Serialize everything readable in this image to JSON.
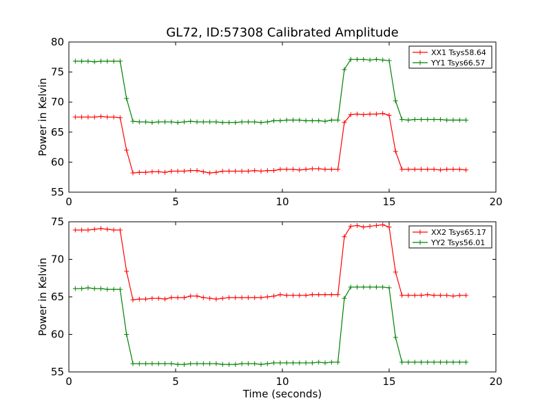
{
  "title": "GL72, ID:57308 Calibrated Amplitude",
  "colors": {
    "red": "#ff0000",
    "green": "#008000"
  },
  "chart_data": [
    {
      "type": "line",
      "title": "GL72, ID:57308 Calibrated Amplitude",
      "xlabel": "",
      "ylabel": "Power in Kelvin",
      "xlim": [
        0,
        20
      ],
      "ylim": [
        55,
        80
      ],
      "xticks": [
        0,
        5,
        10,
        15,
        20
      ],
      "yticks": [
        55,
        60,
        65,
        70,
        75,
        80
      ],
      "grid": false,
      "legend_position": "top-right",
      "x": [
        0.3,
        0.6,
        0.9,
        1.2,
        1.5,
        1.8,
        2.1,
        2.4,
        2.7,
        3.0,
        3.3,
        3.6,
        3.9,
        4.2,
        4.5,
        4.8,
        5.1,
        5.4,
        5.7,
        6.0,
        6.3,
        6.6,
        6.9,
        7.2,
        7.5,
        7.8,
        8.1,
        8.4,
        8.7,
        9.0,
        9.3,
        9.6,
        9.9,
        10.2,
        10.5,
        10.8,
        11.1,
        11.4,
        11.7,
        12.0,
        12.3,
        12.6,
        12.9,
        13.2,
        13.5,
        13.8,
        14.1,
        14.4,
        14.7,
        15.0,
        15.3,
        15.6,
        15.9,
        16.2,
        16.5,
        16.8,
        17.1,
        17.4,
        17.7,
        18.0,
        18.3,
        18.6
      ],
      "series": [
        {
          "name": "XX1 Tsys58.64",
          "color": "#ff0000",
          "values": [
            67.5,
            67.5,
            67.5,
            67.5,
            67.6,
            67.5,
            67.5,
            67.4,
            62.0,
            58.2,
            58.3,
            58.3,
            58.4,
            58.4,
            58.3,
            58.5,
            58.5,
            58.5,
            58.6,
            58.6,
            58.4,
            58.2,
            58.3,
            58.5,
            58.5,
            58.5,
            58.5,
            58.5,
            58.6,
            58.5,
            58.6,
            58.6,
            58.8,
            58.8,
            58.8,
            58.7,
            58.8,
            58.9,
            58.9,
            58.8,
            58.8,
            58.8,
            66.6,
            67.9,
            68.0,
            67.9,
            68.0,
            68.0,
            68.1,
            67.8,
            61.8,
            58.8,
            58.8,
            58.8,
            58.8,
            58.8,
            58.8,
            58.7,
            58.8,
            58.8,
            58.8,
            58.7
          ]
        },
        {
          "name": "YY1 Tsys66.57",
          "color": "#008000",
          "values": [
            76.8,
            76.8,
            76.8,
            76.7,
            76.8,
            76.8,
            76.8,
            76.8,
            70.6,
            66.8,
            66.7,
            66.7,
            66.6,
            66.7,
            66.7,
            66.7,
            66.6,
            66.7,
            66.8,
            66.7,
            66.7,
            66.7,
            66.7,
            66.6,
            66.6,
            66.6,
            66.7,
            66.7,
            66.7,
            66.6,
            66.7,
            66.9,
            66.9,
            67.0,
            67.0,
            67.0,
            66.9,
            66.9,
            66.9,
            66.8,
            67.0,
            67.0,
            75.4,
            77.1,
            77.1,
            77.1,
            77.0,
            77.1,
            77.0,
            76.9,
            70.2,
            67.1,
            67.0,
            67.1,
            67.1,
            67.1,
            67.1,
            67.1,
            67.0,
            67.0,
            67.0,
            67.0
          ]
        }
      ]
    },
    {
      "type": "line",
      "title": "",
      "xlabel": "Time (seconds)",
      "ylabel": "Power in Kelvin",
      "xlim": [
        0,
        20
      ],
      "ylim": [
        55,
        75
      ],
      "xticks": [
        0,
        5,
        10,
        15,
        20
      ],
      "yticks": [
        55,
        60,
        65,
        70,
        75
      ],
      "grid": false,
      "legend_position": "top-right",
      "x": [
        0.3,
        0.6,
        0.9,
        1.2,
        1.5,
        1.8,
        2.1,
        2.4,
        2.7,
        3.0,
        3.3,
        3.6,
        3.9,
        4.2,
        4.5,
        4.8,
        5.1,
        5.4,
        5.7,
        6.0,
        6.3,
        6.6,
        6.9,
        7.2,
        7.5,
        7.8,
        8.1,
        8.4,
        8.7,
        9.0,
        9.3,
        9.6,
        9.9,
        10.2,
        10.5,
        10.8,
        11.1,
        11.4,
        11.7,
        12.0,
        12.3,
        12.6,
        12.9,
        13.2,
        13.5,
        13.8,
        14.1,
        14.4,
        14.7,
        15.0,
        15.3,
        15.6,
        15.9,
        16.2,
        16.5,
        16.8,
        17.1,
        17.4,
        17.7,
        18.0,
        18.3,
        18.6
      ],
      "series": [
        {
          "name": "XX2 Tsys65.17",
          "color": "#ff0000",
          "values": [
            73.9,
            73.9,
            73.9,
            74.0,
            74.1,
            74.0,
            73.9,
            73.9,
            68.4,
            64.6,
            64.7,
            64.7,
            64.8,
            64.8,
            64.7,
            64.9,
            64.9,
            64.9,
            65.1,
            65.1,
            64.9,
            64.8,
            64.7,
            64.8,
            64.9,
            64.9,
            64.9,
            64.9,
            64.9,
            64.9,
            65.0,
            65.1,
            65.3,
            65.2,
            65.2,
            65.2,
            65.2,
            65.3,
            65.3,
            65.3,
            65.3,
            65.3,
            73.0,
            74.4,
            74.5,
            74.3,
            74.4,
            74.5,
            74.6,
            74.3,
            68.3,
            65.2,
            65.2,
            65.2,
            65.2,
            65.3,
            65.2,
            65.2,
            65.2,
            65.1,
            65.2,
            65.2
          ]
        },
        {
          "name": "YY2 Tsys56.01",
          "color": "#008000",
          "values": [
            66.1,
            66.1,
            66.2,
            66.1,
            66.1,
            66.0,
            66.0,
            66.0,
            60.0,
            56.1,
            56.1,
            56.1,
            56.1,
            56.1,
            56.1,
            56.1,
            56.0,
            56.0,
            56.1,
            56.1,
            56.1,
            56.1,
            56.1,
            56.0,
            56.0,
            56.0,
            56.1,
            56.1,
            56.1,
            56.0,
            56.1,
            56.2,
            56.2,
            56.2,
            56.2,
            56.2,
            56.2,
            56.2,
            56.3,
            56.2,
            56.3,
            56.3,
            64.8,
            66.3,
            66.3,
            66.3,
            66.3,
            66.3,
            66.3,
            66.2,
            59.6,
            56.3,
            56.3,
            56.3,
            56.3,
            56.3,
            56.3,
            56.3,
            56.3,
            56.3,
            56.3,
            56.3
          ]
        }
      ]
    }
  ]
}
